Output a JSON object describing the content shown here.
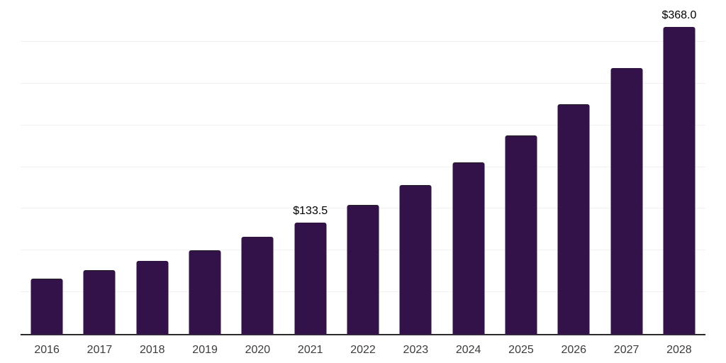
{
  "chart_data": {
    "type": "bar",
    "title": "",
    "xlabel": "",
    "ylabel": "",
    "categories": [
      "2016",
      "2017",
      "2018",
      "2019",
      "2020",
      "2021",
      "2022",
      "2023",
      "2024",
      "2025",
      "2026",
      "2027",
      "2028"
    ],
    "values": [
      66.1,
      76.4,
      87.4,
      100.4,
      116.6,
      133.5,
      154.7,
      178.5,
      205.7,
      238.1,
      275.5,
      318.9,
      368.0
    ],
    "data_labels": [
      "",
      "",
      "",
      "",
      "",
      "$133.5",
      "",
      "",
      "",
      "",
      "",
      "",
      "$368.0"
    ],
    "ylim": [
      0,
      400
    ],
    "gridline_step": 50,
    "grid": "horizontal-only",
    "legend": "none",
    "y_axis_tick_labels": "none",
    "colors": {
      "bar": "#331249",
      "axis_line": "#2b2b2b",
      "gridline": "#f1f1f2",
      "category_label": "#3c3c3c",
      "value_label": "#000000",
      "background": "#ffffff"
    }
  }
}
